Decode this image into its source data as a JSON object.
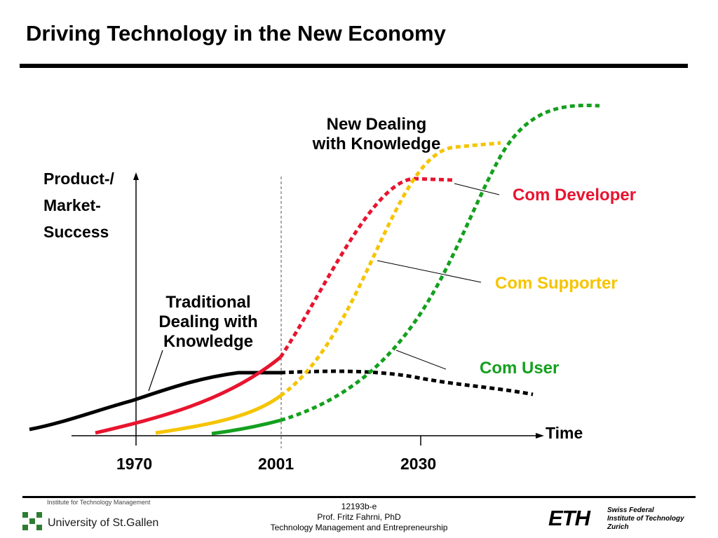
{
  "slide": {
    "title": "Driving Technology in the New Economy"
  },
  "chart_data": {
    "type": "line",
    "ylabel_lines": [
      "Product-/",
      "Market-",
      "Success"
    ],
    "xlabel": "Time",
    "x_ticks": [
      "1970",
      "2001",
      "2030"
    ],
    "annotations": {
      "new_dealing": [
        "New Dealing",
        "with Knowledge"
      ],
      "traditional": [
        "Traditional",
        "Dealing with",
        "Knowledge"
      ]
    },
    "series": [
      {
        "name": "Com Developer",
        "color": "#e8142f"
      },
      {
        "name": "Com Supporter",
        "color": "#f5c400"
      },
      {
        "name": "Com User",
        "color": "#14a01e"
      }
    ],
    "grid": false
  },
  "footer": {
    "code": "12193b-e",
    "author": "Prof. Fritz Fahrni, PhD",
    "course": "Technology Management and Entrepreneurship",
    "left_institute": "Institute for Technology Management",
    "left_university": "University of St.Gallen",
    "eth_mark": "ETH",
    "eth_lines": [
      "Swiss Federal",
      "Institute of Technology",
      "Zurich"
    ]
  }
}
